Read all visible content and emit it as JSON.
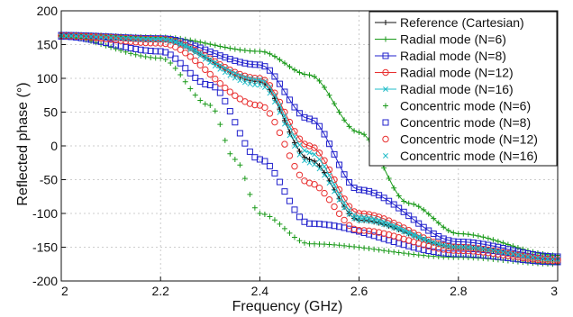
{
  "chart_data": {
    "type": "line",
    "title": "",
    "xlabel": "Frequency (GHz)",
    "ylabel": "Reflected phase (°)",
    "xlim": [
      2,
      3
    ],
    "ylim": [
      -200,
      200
    ],
    "x_ticks": [
      "2",
      "2.2",
      "2.4",
      "2.6",
      "2.8",
      "3"
    ],
    "y_ticks": [
      "200",
      "150",
      "100",
      "50",
      "0",
      "-50",
      "-100",
      "-150",
      "-200"
    ],
    "grid": true,
    "legend_position": "top-right",
    "x_range_sampled": [
      2.0,
      3.0,
      0.01
    ],
    "series": [
      {
        "name": "Reference (Cartesian)",
        "color": "#111111",
        "marker": "plus-line",
        "y_start": 163,
        "y_end": -167,
        "y_at": {
          "2.2": 158,
          "2.4": 95,
          "2.5": -20,
          "2.6": -110,
          "2.8": -150
        }
      },
      {
        "name": "Radial mode (N=6)",
        "color": "#1a9a1a",
        "marker": "plus-line",
        "y_start": 165,
        "y_end": -162,
        "y_at": {
          "2.2": 161,
          "2.4": 140,
          "2.5": 105,
          "2.6": 20,
          "2.7": -85,
          "2.8": -130
        }
      },
      {
        "name": "Radial mode (N=8)",
        "color": "#2020cc",
        "marker": "square-line",
        "y_start": 164,
        "y_end": -164,
        "y_at": {
          "2.2": 159,
          "2.4": 120,
          "2.5": 40,
          "2.6": -65,
          "2.8": -142
        }
      },
      {
        "name": "Radial mode (N=12)",
        "color": "#e83030",
        "marker": "circle-line",
        "y_start": 163,
        "y_end": -168,
        "y_at": {
          "2.2": 158,
          "2.4": 100,
          "2.5": 0,
          "2.6": -100,
          "2.8": -150
        }
      },
      {
        "name": "Radial mode (N=16)",
        "color": "#20bcc8",
        "marker": "x-line",
        "y_start": 163,
        "y_end": -168,
        "y_at": {
          "2.2": 158,
          "2.4": 98,
          "2.5": -10,
          "2.6": -105,
          "2.8": -150
        }
      },
      {
        "name": "Concentric mode (N=6)",
        "color": "#1a9a1a",
        "marker": "plus",
        "y_start": 162,
        "y_end": -175,
        "y_at": {
          "2.2": 130,
          "2.3": 60,
          "2.35": -20,
          "2.4": -100,
          "2.5": -145,
          "2.8": -165
        }
      },
      {
        "name": "Concentric mode (N=8)",
        "color": "#2020cc",
        "marker": "square",
        "y_start": 162,
        "y_end": -172,
        "y_at": {
          "2.2": 140,
          "2.3": 90,
          "2.4": -20,
          "2.5": -115,
          "2.8": -160
        }
      },
      {
        "name": "Concentric mode (N=12)",
        "color": "#e83030",
        "marker": "circle",
        "y_start": 163,
        "y_end": -170,
        "y_at": {
          "2.2": 152,
          "2.4": 60,
          "2.5": -55,
          "2.6": -125,
          "2.8": -155
        }
      },
      {
        "name": "Concentric mode (N=16)",
        "color": "#20bcc8",
        "marker": "x",
        "y_start": 163,
        "y_end": -168,
        "y_at": {
          "2.2": 157,
          "2.4": 90,
          "2.5": -25,
          "2.6": -110,
          "2.8": -150
        }
      }
    ]
  }
}
